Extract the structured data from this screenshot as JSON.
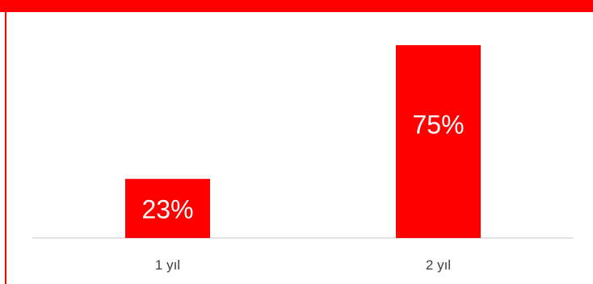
{
  "colors": {
    "accent": "#ff0000",
    "axis": "#d9d9d9",
    "label": "#ffffff",
    "tick": "#404040"
  },
  "chart_data": {
    "type": "bar",
    "categories": [
      "1 yıl",
      "2 yıl"
    ],
    "values": [
      23,
      75
    ],
    "data_labels": [
      "23%",
      "75%"
    ],
    "title": "",
    "xlabel": "",
    "ylabel": "",
    "ylim": [
      0,
      75
    ],
    "grid": false,
    "legend": "none"
  }
}
